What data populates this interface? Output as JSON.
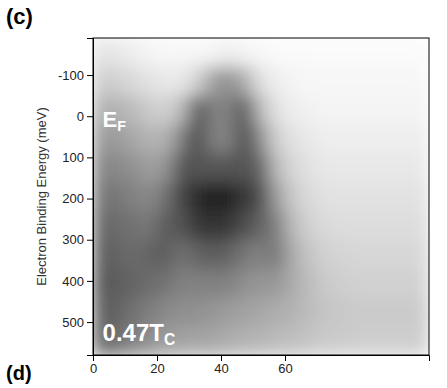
{
  "chart_data": {
    "type": "heatmap",
    "title": "(c)",
    "next_panel_label": "(d)",
    "y_label": "Electron Binding Energy (meV)",
    "xlim": [
      0,
      105
    ],
    "ylim": [
      580,
      -190
    ],
    "xticks": [
      0,
      20,
      40,
      60
    ],
    "yticks": [
      -100,
      0,
      100,
      200,
      300,
      400,
      500
    ],
    "x_bins": [
      0,
      5,
      10,
      15,
      20,
      25,
      30,
      35,
      40,
      45,
      50,
      55,
      60,
      65,
      70,
      75,
      80,
      85,
      90,
      95,
      100,
      105
    ],
    "y_bins": [
      -190,
      -120,
      -50,
      20,
      90,
      160,
      230,
      300,
      370,
      440,
      510,
      580
    ],
    "cells": [
      [
        0.12,
        0.1,
        0.08,
        0.06,
        0.05,
        0.05,
        0.05,
        0.06,
        0.08,
        0.06,
        0.05,
        0.04,
        0.04,
        0.04,
        0.04,
        0.04,
        0.04,
        0.04,
        0.04,
        0.04,
        0.04
      ],
      [
        0.2,
        0.18,
        0.15,
        0.12,
        0.1,
        0.1,
        0.18,
        0.35,
        0.4,
        0.3,
        0.12,
        0.08,
        0.06,
        0.05,
        0.05,
        0.05,
        0.05,
        0.05,
        0.05,
        0.05,
        0.05
      ],
      [
        0.3,
        0.28,
        0.25,
        0.2,
        0.18,
        0.25,
        0.6,
        0.45,
        0.45,
        0.6,
        0.25,
        0.12,
        0.08,
        0.07,
        0.06,
        0.06,
        0.06,
        0.06,
        0.06,
        0.06,
        0.06
      ],
      [
        0.38,
        0.36,
        0.32,
        0.28,
        0.28,
        0.45,
        0.65,
        0.45,
        0.45,
        0.65,
        0.4,
        0.18,
        0.12,
        0.1,
        0.08,
        0.08,
        0.08,
        0.08,
        0.08,
        0.08,
        0.08
      ],
      [
        0.45,
        0.42,
        0.4,
        0.35,
        0.38,
        0.6,
        0.6,
        0.6,
        0.6,
        0.6,
        0.55,
        0.25,
        0.16,
        0.12,
        0.1,
        0.1,
        0.1,
        0.1,
        0.1,
        0.1,
        0.1
      ],
      [
        0.5,
        0.48,
        0.45,
        0.42,
        0.5,
        0.65,
        0.75,
        0.8,
        0.78,
        0.7,
        0.62,
        0.35,
        0.2,
        0.15,
        0.12,
        0.12,
        0.12,
        0.12,
        0.12,
        0.12,
        0.12
      ],
      [
        0.55,
        0.52,
        0.5,
        0.48,
        0.58,
        0.6,
        0.7,
        0.72,
        0.7,
        0.62,
        0.55,
        0.45,
        0.25,
        0.18,
        0.15,
        0.14,
        0.14,
        0.14,
        0.14,
        0.14,
        0.14
      ],
      [
        0.58,
        0.55,
        0.52,
        0.55,
        0.58,
        0.5,
        0.55,
        0.58,
        0.55,
        0.48,
        0.45,
        0.48,
        0.3,
        0.22,
        0.18,
        0.17,
        0.16,
        0.16,
        0.16,
        0.16,
        0.16
      ],
      [
        0.6,
        0.57,
        0.55,
        0.52,
        0.5,
        0.45,
        0.45,
        0.45,
        0.45,
        0.4,
        0.38,
        0.38,
        0.3,
        0.25,
        0.2,
        0.19,
        0.18,
        0.18,
        0.18,
        0.18,
        0.18
      ],
      [
        0.58,
        0.55,
        0.5,
        0.46,
        0.42,
        0.4,
        0.4,
        0.38,
        0.36,
        0.34,
        0.32,
        0.3,
        0.28,
        0.25,
        0.22,
        0.21,
        0.2,
        0.2,
        0.2,
        0.2,
        0.2
      ],
      [
        0.55,
        0.5,
        0.45,
        0.4,
        0.36,
        0.34,
        0.33,
        0.32,
        0.3,
        0.28,
        0.27,
        0.25,
        0.24,
        0.22,
        0.2,
        0.2,
        0.19,
        0.19,
        0.19,
        0.19,
        0.19
      ]
    ],
    "annotations": [
      {
        "text": "E",
        "subscript": "F",
        "x": 3,
        "y": 25
      },
      {
        "text": "0.47T",
        "subscript": "C",
        "x": 3,
        "y": 545
      }
    ]
  }
}
